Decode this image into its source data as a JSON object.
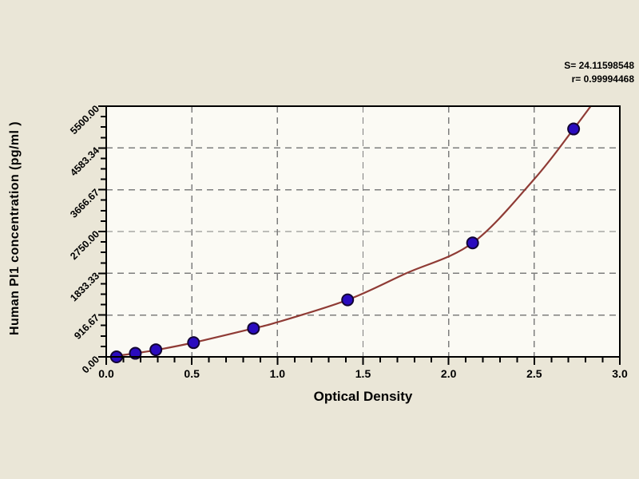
{
  "chart_data": {
    "type": "scatter",
    "title": "",
    "xlabel": "Optical Density",
    "ylabel": "Human PI1 concentration (pg/ml )",
    "xlim": [
      0,
      3.0
    ],
    "ylim": [
      0,
      5500
    ],
    "grid": true,
    "legend": false,
    "x_ticks": [
      {
        "value": 0.0,
        "label": "0.0"
      },
      {
        "value": 0.5,
        "label": "0.5"
      },
      {
        "value": 1.0,
        "label": "1.0"
      },
      {
        "value": 1.5,
        "label": "1.5"
      },
      {
        "value": 2.0,
        "label": "2.0"
      },
      {
        "value": 2.5,
        "label": "2.5"
      },
      {
        "value": 3.0,
        "label": "3.0"
      }
    ],
    "y_ticks": [
      {
        "value": 0,
        "label": "0.00"
      },
      {
        "value": 916.67,
        "label": "916.67"
      },
      {
        "value": 1833.33,
        "label": "1833.33"
      },
      {
        "value": 2750.0,
        "label": "2750.00"
      },
      {
        "value": 3666.67,
        "label": "3666.67"
      },
      {
        "value": 4583.33,
        "label": "4583.34"
      },
      {
        "value": 5500.0,
        "label": "5500.00"
      }
    ],
    "series": [
      {
        "name": "standard-points",
        "type": "scatter",
        "points": [
          {
            "x": 0.06,
            "y": 0
          },
          {
            "x": 0.17,
            "y": 78.1
          },
          {
            "x": 0.29,
            "y": 156.3
          },
          {
            "x": 0.51,
            "y": 312.5
          },
          {
            "x": 0.86,
            "y": 625
          },
          {
            "x": 1.41,
            "y": 1250
          },
          {
            "x": 2.14,
            "y": 2500
          },
          {
            "x": 2.73,
            "y": 5000
          }
        ]
      },
      {
        "name": "fitted-curve",
        "type": "line",
        "points": [
          {
            "x": 0.02,
            "y": 0
          },
          {
            "x": 0.17,
            "y": 78
          },
          {
            "x": 0.3,
            "y": 156
          },
          {
            "x": 0.51,
            "y": 313
          },
          {
            "x": 0.86,
            "y": 625
          },
          {
            "x": 1.0,
            "y": 760
          },
          {
            "x": 1.41,
            "y": 1250
          },
          {
            "x": 1.75,
            "y": 1830
          },
          {
            "x": 2.14,
            "y": 2500
          },
          {
            "x": 2.5,
            "y": 3900
          },
          {
            "x": 2.73,
            "y": 5000
          },
          {
            "x": 2.83,
            "y": 5500
          }
        ]
      }
    ],
    "fit": {
      "s_label": "S= 24.11598548",
      "r_label": "r= 0.99994468",
      "s_value": "24.11598548",
      "r_value": "0.99994468"
    },
    "colors": {
      "background": "#eae6d7",
      "plot_bg": "#fbfaf4",
      "frame": "#000000",
      "grid": "#7d7d7d",
      "curve": "#8f3b35",
      "marker_fill": "#2a0bbf",
      "marker_edge": "#120433",
      "text": "#000000"
    }
  }
}
